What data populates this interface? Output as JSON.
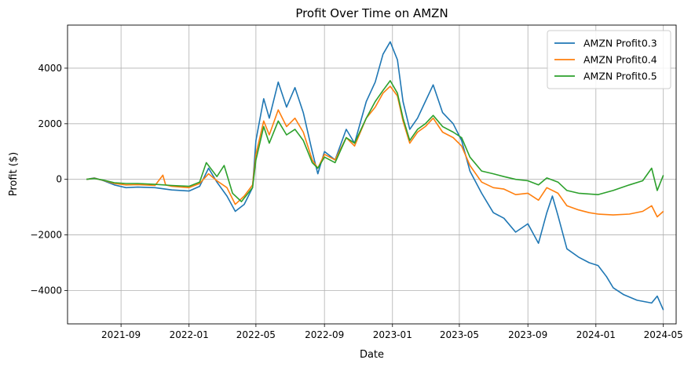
{
  "chart_data": {
    "type": "line",
    "title": "Profit Over Time on AMZN",
    "xlabel": "Date",
    "ylabel": "Profit ($)",
    "x_ticks": [
      "2021-09",
      "2022-01",
      "2022-05",
      "2022-09",
      "2023-01",
      "2023-05",
      "2023-09",
      "2024-01",
      "2024-05"
    ],
    "y_ticks": [
      -4000,
      -2000,
      0,
      2000,
      4000
    ],
    "xlim": [
      "2021-05-28",
      "2024-05-24"
    ],
    "ylim": [
      -5200,
      5550
    ],
    "grid": true,
    "legend_position": "top-right",
    "series": [
      {
        "name": "AMZN Profit0.3",
        "color": "#1f77b4",
        "points": [
          [
            "2021-07-01",
            0
          ],
          [
            "2021-07-15",
            50
          ],
          [
            "2021-08-01",
            -50
          ],
          [
            "2021-08-20",
            -200
          ],
          [
            "2021-09-10",
            -300
          ],
          [
            "2021-10-01",
            -280
          ],
          [
            "2021-11-01",
            -300
          ],
          [
            "2021-12-01",
            -380
          ],
          [
            "2022-01-01",
            -420
          ],
          [
            "2022-01-20",
            -250
          ],
          [
            "2022-02-05",
            400
          ],
          [
            "2022-02-20",
            -100
          ],
          [
            "2022-03-10",
            -600
          ],
          [
            "2022-03-25",
            -1150
          ],
          [
            "2022-04-10",
            -900
          ],
          [
            "2022-04-25",
            -300
          ],
          [
            "2022-05-01",
            1400
          ],
          [
            "2022-05-15",
            2900
          ],
          [
            "2022-05-25",
            2200
          ],
          [
            "2022-06-10",
            3500
          ],
          [
            "2022-06-25",
            2600
          ],
          [
            "2022-07-10",
            3300
          ],
          [
            "2022-07-25",
            2400
          ],
          [
            "2022-08-10",
            1000
          ],
          [
            "2022-08-20",
            200
          ],
          [
            "2022-09-01",
            1000
          ],
          [
            "2022-09-20",
            700
          ],
          [
            "2022-10-10",
            1800
          ],
          [
            "2022-10-25",
            1300
          ],
          [
            "2022-11-15",
            2800
          ],
          [
            "2022-12-01",
            3500
          ],
          [
            "2022-12-15",
            4500
          ],
          [
            "2022-12-28",
            4950
          ],
          [
            "2023-01-10",
            4300
          ],
          [
            "2023-01-20",
            2800
          ],
          [
            "2023-02-01",
            1800
          ],
          [
            "2023-02-15",
            2200
          ],
          [
            "2023-03-01",
            2800
          ],
          [
            "2023-03-15",
            3400
          ],
          [
            "2023-04-01",
            2400
          ],
          [
            "2023-04-20",
            2000
          ],
          [
            "2023-05-05",
            1400
          ],
          [
            "2023-05-20",
            300
          ],
          [
            "2023-06-10",
            -500
          ],
          [
            "2023-07-01",
            -1200
          ],
          [
            "2023-07-20",
            -1400
          ],
          [
            "2023-08-10",
            -1900
          ],
          [
            "2023-09-01",
            -1600
          ],
          [
            "2023-09-20",
            -2300
          ],
          [
            "2023-10-05",
            -1200
          ],
          [
            "2023-10-15",
            -600
          ],
          [
            "2023-10-25",
            -1300
          ],
          [
            "2023-11-10",
            -2500
          ],
          [
            "2023-12-01",
            -2800
          ],
          [
            "2023-12-20",
            -3000
          ],
          [
            "2024-01-05",
            -3100
          ],
          [
            "2024-01-20",
            -3500
          ],
          [
            "2024-02-01",
            -3900
          ],
          [
            "2024-02-20",
            -4150
          ],
          [
            "2024-03-15",
            -4350
          ],
          [
            "2024-04-10",
            -4450
          ],
          [
            "2024-04-20",
            -4200
          ],
          [
            "2024-05-01",
            -4700
          ]
        ]
      },
      {
        "name": "AMZN Profit0.4",
        "color": "#ff7f0e",
        "points": [
          [
            "2021-07-01",
            0
          ],
          [
            "2021-07-15",
            40
          ],
          [
            "2021-08-01",
            -40
          ],
          [
            "2021-08-20",
            -150
          ],
          [
            "2021-09-10",
            -200
          ],
          [
            "2021-10-01",
            -190
          ],
          [
            "2021-11-01",
            -220
          ],
          [
            "2021-11-15",
            150
          ],
          [
            "2021-11-20",
            -200
          ],
          [
            "2021-12-01",
            -250
          ],
          [
            "2022-01-01",
            -300
          ],
          [
            "2022-01-20",
            -150
          ],
          [
            "2022-02-05",
            200
          ],
          [
            "2022-02-20",
            -50
          ],
          [
            "2022-03-10",
            -300
          ],
          [
            "2022-03-25",
            -900
          ],
          [
            "2022-04-10",
            -600
          ],
          [
            "2022-04-25",
            -200
          ],
          [
            "2022-05-01",
            900
          ],
          [
            "2022-05-15",
            2100
          ],
          [
            "2022-05-25",
            1600
          ],
          [
            "2022-06-10",
            2500
          ],
          [
            "2022-06-25",
            1900
          ],
          [
            "2022-07-10",
            2200
          ],
          [
            "2022-07-25",
            1700
          ],
          [
            "2022-08-10",
            700
          ],
          [
            "2022-08-20",
            400
          ],
          [
            "2022-09-01",
            900
          ],
          [
            "2022-09-20",
            700
          ],
          [
            "2022-10-10",
            1500
          ],
          [
            "2022-10-25",
            1200
          ],
          [
            "2022-11-15",
            2200
          ],
          [
            "2022-12-01",
            2600
          ],
          [
            "2022-12-15",
            3100
          ],
          [
            "2022-12-28",
            3350
          ],
          [
            "2023-01-10",
            3000
          ],
          [
            "2023-01-20",
            2100
          ],
          [
            "2023-02-01",
            1300
          ],
          [
            "2023-02-15",
            1700
          ],
          [
            "2023-03-01",
            1900
          ],
          [
            "2023-03-15",
            2200
          ],
          [
            "2023-04-01",
            1700
          ],
          [
            "2023-04-20",
            1500
          ],
          [
            "2023-05-05",
            1200
          ],
          [
            "2023-05-20",
            500
          ],
          [
            "2023-06-10",
            -100
          ],
          [
            "2023-07-01",
            -300
          ],
          [
            "2023-07-20",
            -350
          ],
          [
            "2023-08-10",
            -550
          ],
          [
            "2023-09-01",
            -500
          ],
          [
            "2023-09-20",
            -750
          ],
          [
            "2023-10-05",
            -300
          ],
          [
            "2023-10-25",
            -500
          ],
          [
            "2023-11-10",
            -950
          ],
          [
            "2023-12-01",
            -1100
          ],
          [
            "2023-12-20",
            -1200
          ],
          [
            "2024-01-05",
            -1250
          ],
          [
            "2024-02-01",
            -1280
          ],
          [
            "2024-03-01",
            -1250
          ],
          [
            "2024-03-25",
            -1150
          ],
          [
            "2024-04-10",
            -950
          ],
          [
            "2024-04-20",
            -1350
          ],
          [
            "2024-05-01",
            -1150
          ]
        ]
      },
      {
        "name": "AMZN Profit0.5",
        "color": "#2ca02c",
        "points": [
          [
            "2021-07-01",
            0
          ],
          [
            "2021-07-15",
            30
          ],
          [
            "2021-08-01",
            -30
          ],
          [
            "2021-08-20",
            -120
          ],
          [
            "2021-09-10",
            -150
          ],
          [
            "2021-10-01",
            -150
          ],
          [
            "2021-11-01",
            -180
          ],
          [
            "2021-12-01",
            -220
          ],
          [
            "2022-01-01",
            -250
          ],
          [
            "2022-01-20",
            -100
          ],
          [
            "2022-02-01",
            600
          ],
          [
            "2022-02-20",
            100
          ],
          [
            "2022-03-05",
            500
          ],
          [
            "2022-03-20",
            -500
          ],
          [
            "2022-04-05",
            -800
          ],
          [
            "2022-04-25",
            -300
          ],
          [
            "2022-05-01",
            700
          ],
          [
            "2022-05-15",
            1900
          ],
          [
            "2022-05-25",
            1300
          ],
          [
            "2022-06-10",
            2100
          ],
          [
            "2022-06-25",
            1600
          ],
          [
            "2022-07-10",
            1800
          ],
          [
            "2022-07-25",
            1400
          ],
          [
            "2022-08-10",
            600
          ],
          [
            "2022-08-20",
            400
          ],
          [
            "2022-09-01",
            800
          ],
          [
            "2022-09-20",
            600
          ],
          [
            "2022-10-10",
            1500
          ],
          [
            "2022-10-25",
            1300
          ],
          [
            "2022-11-15",
            2200
          ],
          [
            "2022-12-01",
            2800
          ],
          [
            "2022-12-15",
            3200
          ],
          [
            "2022-12-28",
            3550
          ],
          [
            "2023-01-10",
            3100
          ],
          [
            "2023-01-20",
            2200
          ],
          [
            "2023-02-01",
            1400
          ],
          [
            "2023-02-15",
            1800
          ],
          [
            "2023-03-01",
            2000
          ],
          [
            "2023-03-15",
            2300
          ],
          [
            "2023-04-01",
            1900
          ],
          [
            "2023-04-20",
            1700
          ],
          [
            "2023-05-05",
            1500
          ],
          [
            "2023-05-20",
            800
          ],
          [
            "2023-06-10",
            300
          ],
          [
            "2023-07-01",
            200
          ],
          [
            "2023-07-20",
            100
          ],
          [
            "2023-08-10",
            0
          ],
          [
            "2023-09-01",
            -50
          ],
          [
            "2023-09-20",
            -200
          ],
          [
            "2023-10-05",
            50
          ],
          [
            "2023-10-25",
            -100
          ],
          [
            "2023-11-10",
            -400
          ],
          [
            "2023-12-01",
            -500
          ],
          [
            "2024-01-05",
            -550
          ],
          [
            "2024-02-01",
            -400
          ],
          [
            "2024-03-01",
            -200
          ],
          [
            "2024-03-25",
            -50
          ],
          [
            "2024-04-10",
            400
          ],
          [
            "2024-04-20",
            -400
          ],
          [
            "2024-05-01",
            150
          ]
        ]
      }
    ]
  }
}
